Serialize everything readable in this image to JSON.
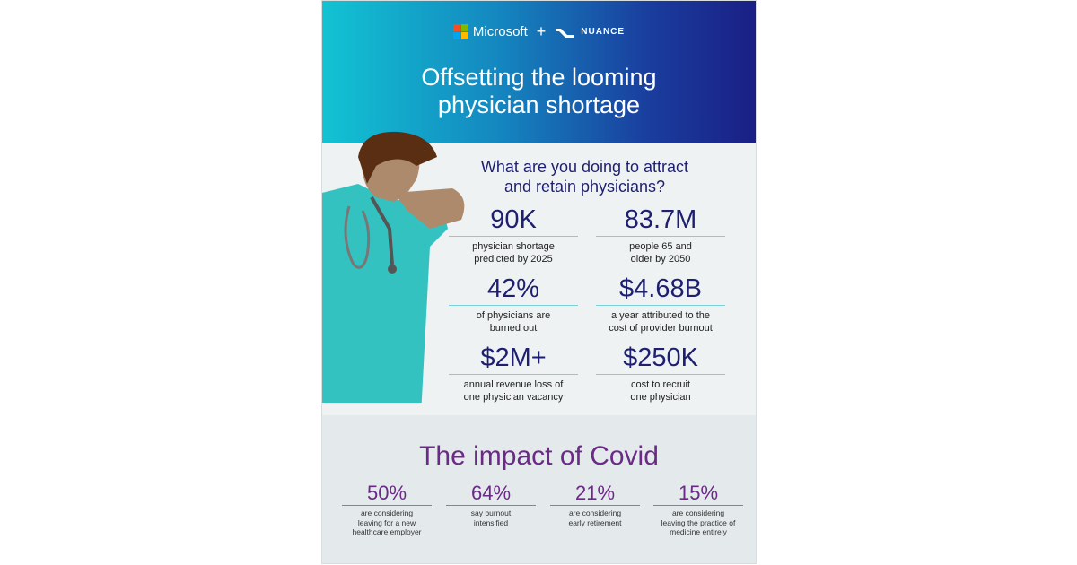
{
  "header": {
    "brand1": "Microsoft",
    "plus": "+",
    "brand2": "NUANCE",
    "title_line1": "Offsetting the looming",
    "title_line2": "physician shortage"
  },
  "intro": {
    "question_line1": "What are you doing to attract",
    "question_line2": "and retain physicians?"
  },
  "stats": [
    {
      "value": "90K",
      "desc1": "physician shortage",
      "desc2": "predicted by 2025"
    },
    {
      "value": "83.7M",
      "desc1": "people 65 and",
      "desc2": "older by 2050"
    },
    {
      "value": "42%",
      "desc1": "of physicians are",
      "desc2": "burned out"
    },
    {
      "value": "$4.68B",
      "desc1": "a year attributed to the",
      "desc2": "cost of provider burnout"
    },
    {
      "value": "$2M+",
      "desc1": "annual revenue loss of",
      "desc2": "one physician vacancy"
    },
    {
      "value": "$250K",
      "desc1": "cost to recruit",
      "desc2": "one physician"
    }
  ],
  "covid": {
    "title": "The impact of Covid",
    "stats": [
      {
        "value": "50%",
        "desc1": "are considering",
        "desc2": "leaving for a new",
        "desc3": "healthcare employer"
      },
      {
        "value": "64%",
        "desc1": "say burnout",
        "desc2": "intensified",
        "desc3": ""
      },
      {
        "value": "21%",
        "desc1": "are considering",
        "desc2": "early retirement",
        "desc3": ""
      },
      {
        "value": "15%",
        "desc1": "are considering",
        "desc2": "leaving the practice of",
        "desc3": "medicine entirely"
      }
    ]
  },
  "colors": {
    "navy": "#1f1f70",
    "purple": "#6b2a86",
    "teal": "#3cc4c0"
  }
}
